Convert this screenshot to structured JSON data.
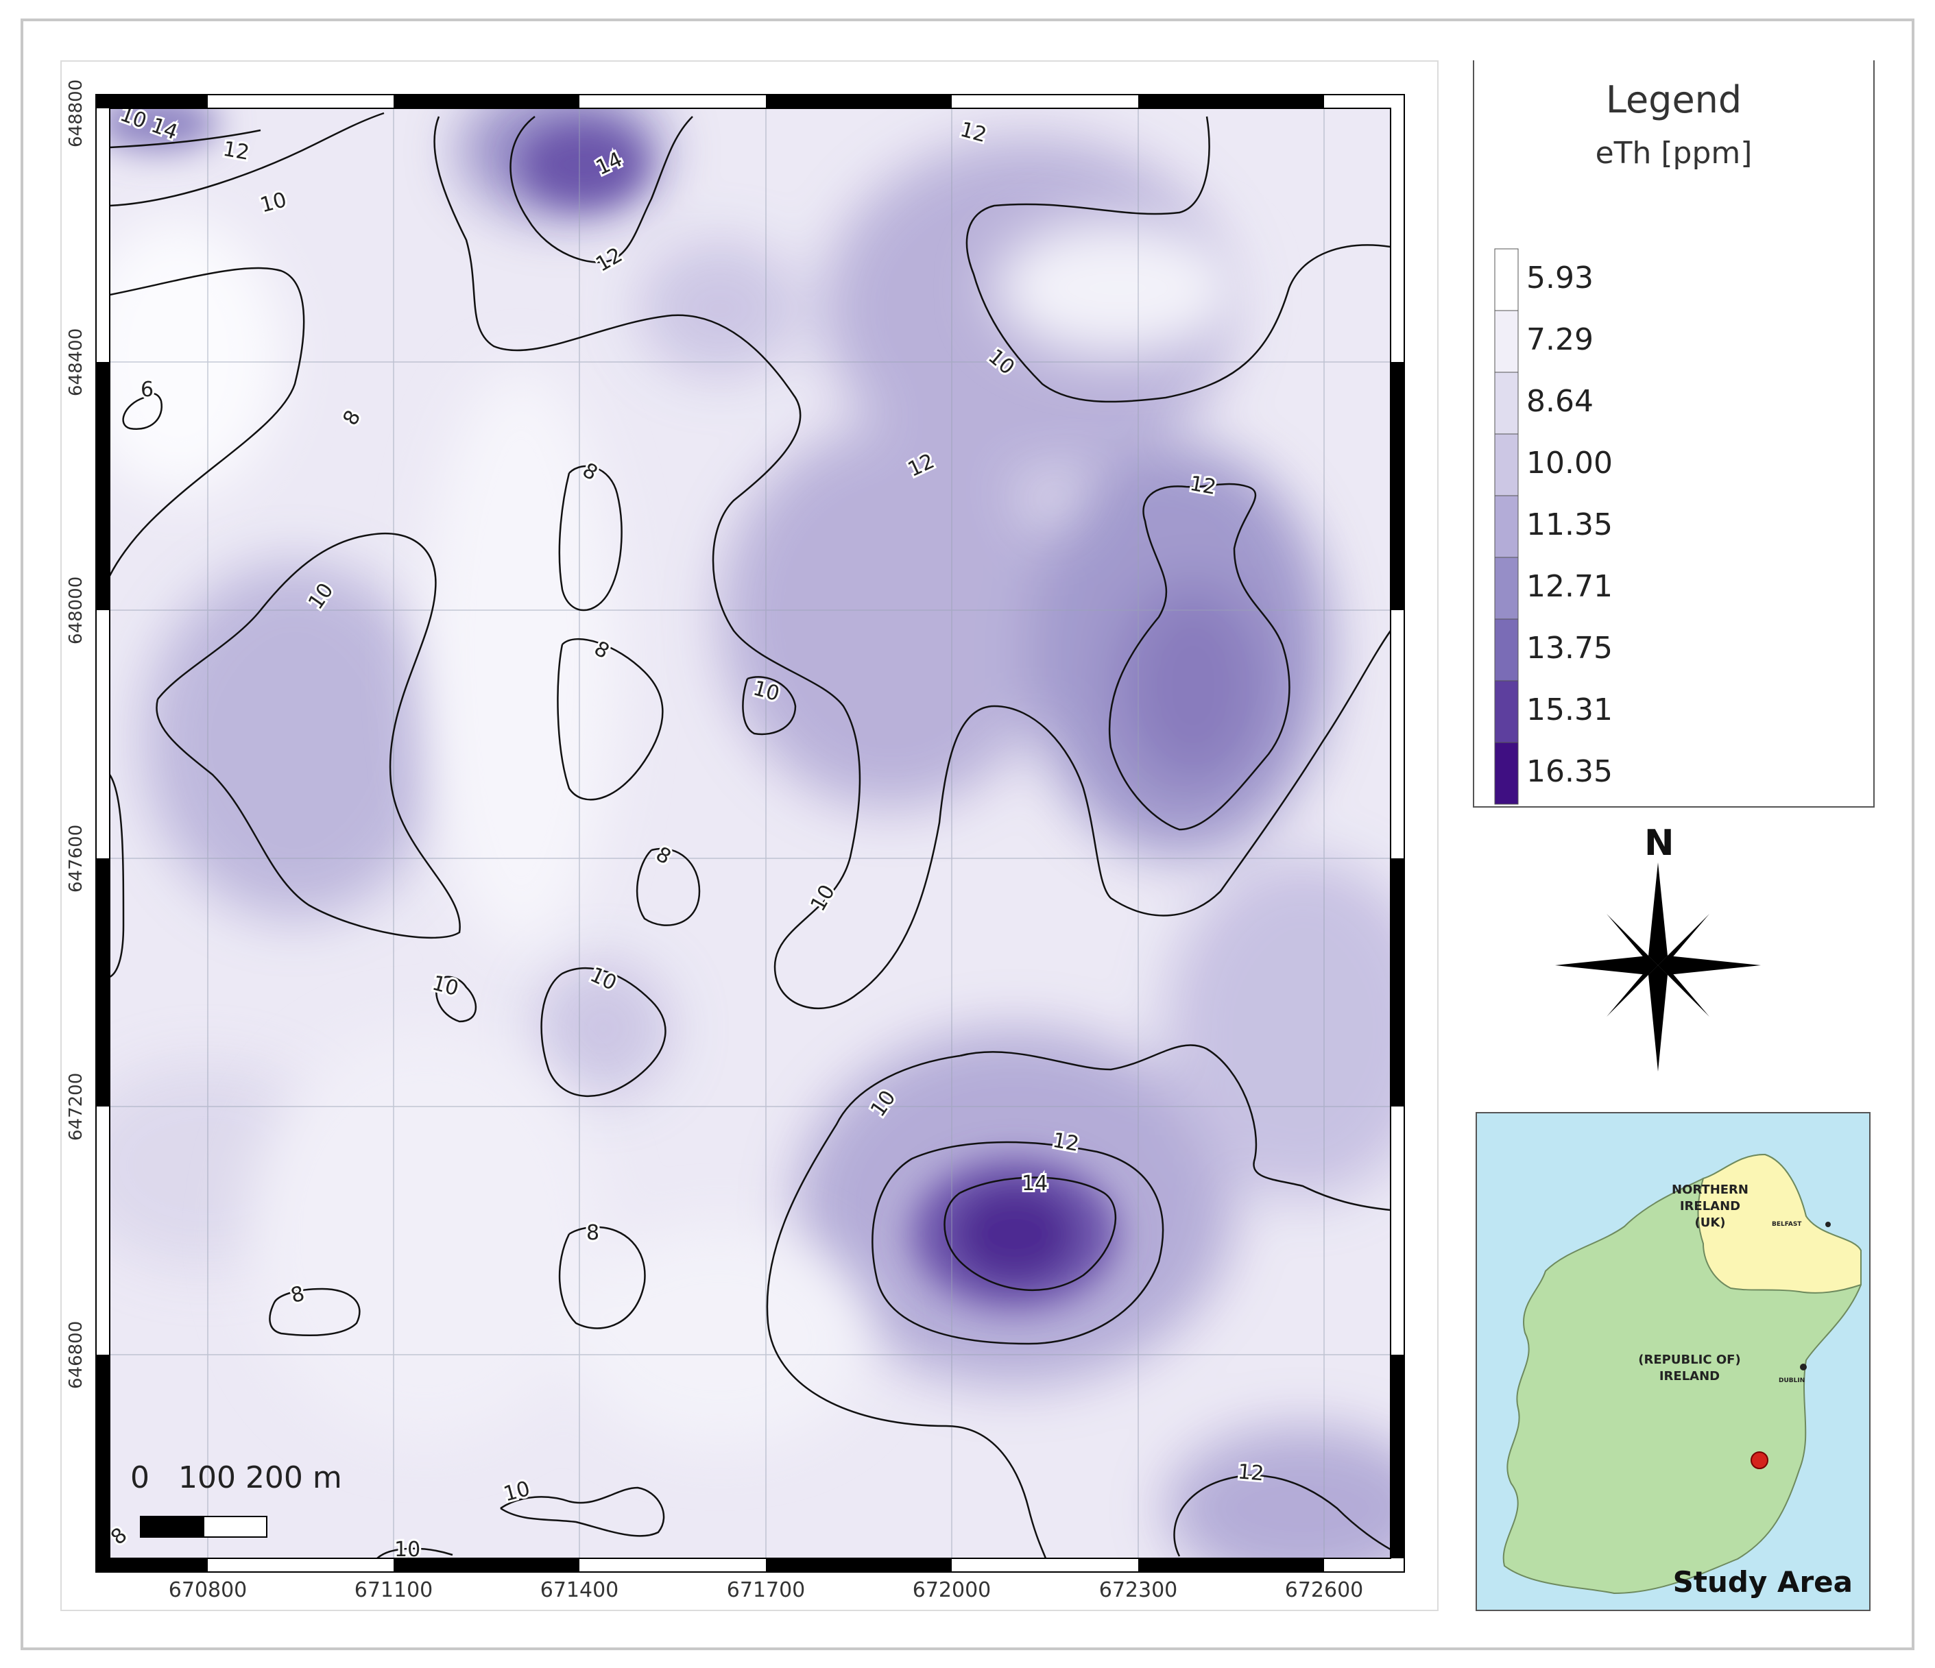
{
  "map": {
    "x_ticks": [
      "670800",
      "671100",
      "671400",
      "671700",
      "672000",
      "672300",
      "672600"
    ],
    "y_ticks": [
      "648800",
      "648400",
      "648000",
      "647600",
      "647200",
      "646800"
    ],
    "contour_labels": [
      "10",
      "14",
      "12",
      "10",
      "14",
      "12",
      "12",
      "10",
      "6",
      "8",
      "12",
      "12",
      "8",
      "10",
      "8",
      "10",
      "8",
      "10",
      "10",
      "10",
      "10",
      "12",
      "14",
      "8",
      "8",
      "12",
      "10",
      "10",
      "8"
    ],
    "scale_bar": "0   100 200 m"
  },
  "legend": {
    "title": "Legend",
    "unit": "eTh [ppm]",
    "items": [
      {
        "label": "5.93",
        "color": "#ffffff"
      },
      {
        "label": "7.29",
        "color": "#f1eff8"
      },
      {
        "label": "8.64",
        "color": "#e0ddef"
      },
      {
        "label": "10.00",
        "color": "#ccc7e4"
      },
      {
        "label": "11.35",
        "color": "#b3acd7"
      },
      {
        "label": "12.71",
        "color": "#968ec7"
      },
      {
        "label": "13.75",
        "color": "#7a6cb6"
      },
      {
        "label": "15.31",
        "color": "#5d3f9e"
      },
      {
        "label": "16.35",
        "color": "#3f0f82"
      }
    ]
  },
  "north_arrow": {
    "label": "N",
    "icon": "north-star-icon"
  },
  "inset": {
    "northern_ireland": [
      "NORTHERN",
      "IRELAND",
      "(UK)"
    ],
    "belfast": "BELFAST",
    "republic": [
      "(REPUBLIC OF)",
      "IRELAND"
    ],
    "dublin": "DUBLIN",
    "caption": "Study Area"
  }
}
